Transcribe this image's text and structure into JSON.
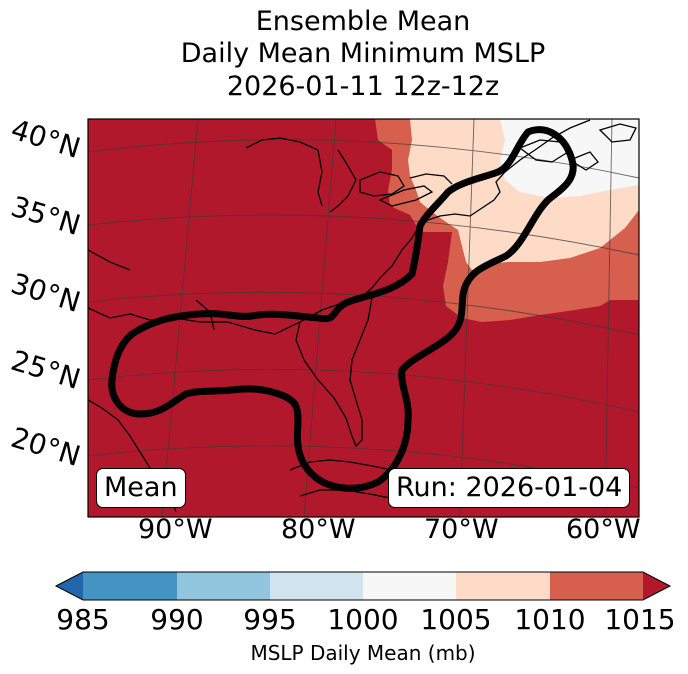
{
  "title": {
    "line1": "Ensemble Mean",
    "line2": "Daily Mean Minimum MSLP",
    "line3": "2026-01-11 12z-12z"
  },
  "map": {
    "lat_labels": [
      "40°N",
      "35°N",
      "30°N",
      "25°N",
      "20°N"
    ],
    "lon_labels": [
      "90°W",
      "80°W",
      "70°W",
      "60°W"
    ],
    "mean_box": "Mean",
    "run_box": "Run: 2026-01-04"
  },
  "colorbar": {
    "ticks": [
      "985",
      "990",
      "995",
      "1000",
      "1005",
      "1010",
      "1015"
    ],
    "label": "MSLP Daily Mean (mb)",
    "colors": [
      "#2166ac",
      "#4393c3",
      "#92c5de",
      "#d1e5f0",
      "#f7f7f7",
      "#fddbc7",
      "#d6604d",
      "#b2182b"
    ]
  },
  "colors": {
    "fill_1015": "#b2182b",
    "fill_1010": "#d6604d",
    "fill_1005": "#fddbc7",
    "fill_1000": "#f7f7f7"
  }
}
